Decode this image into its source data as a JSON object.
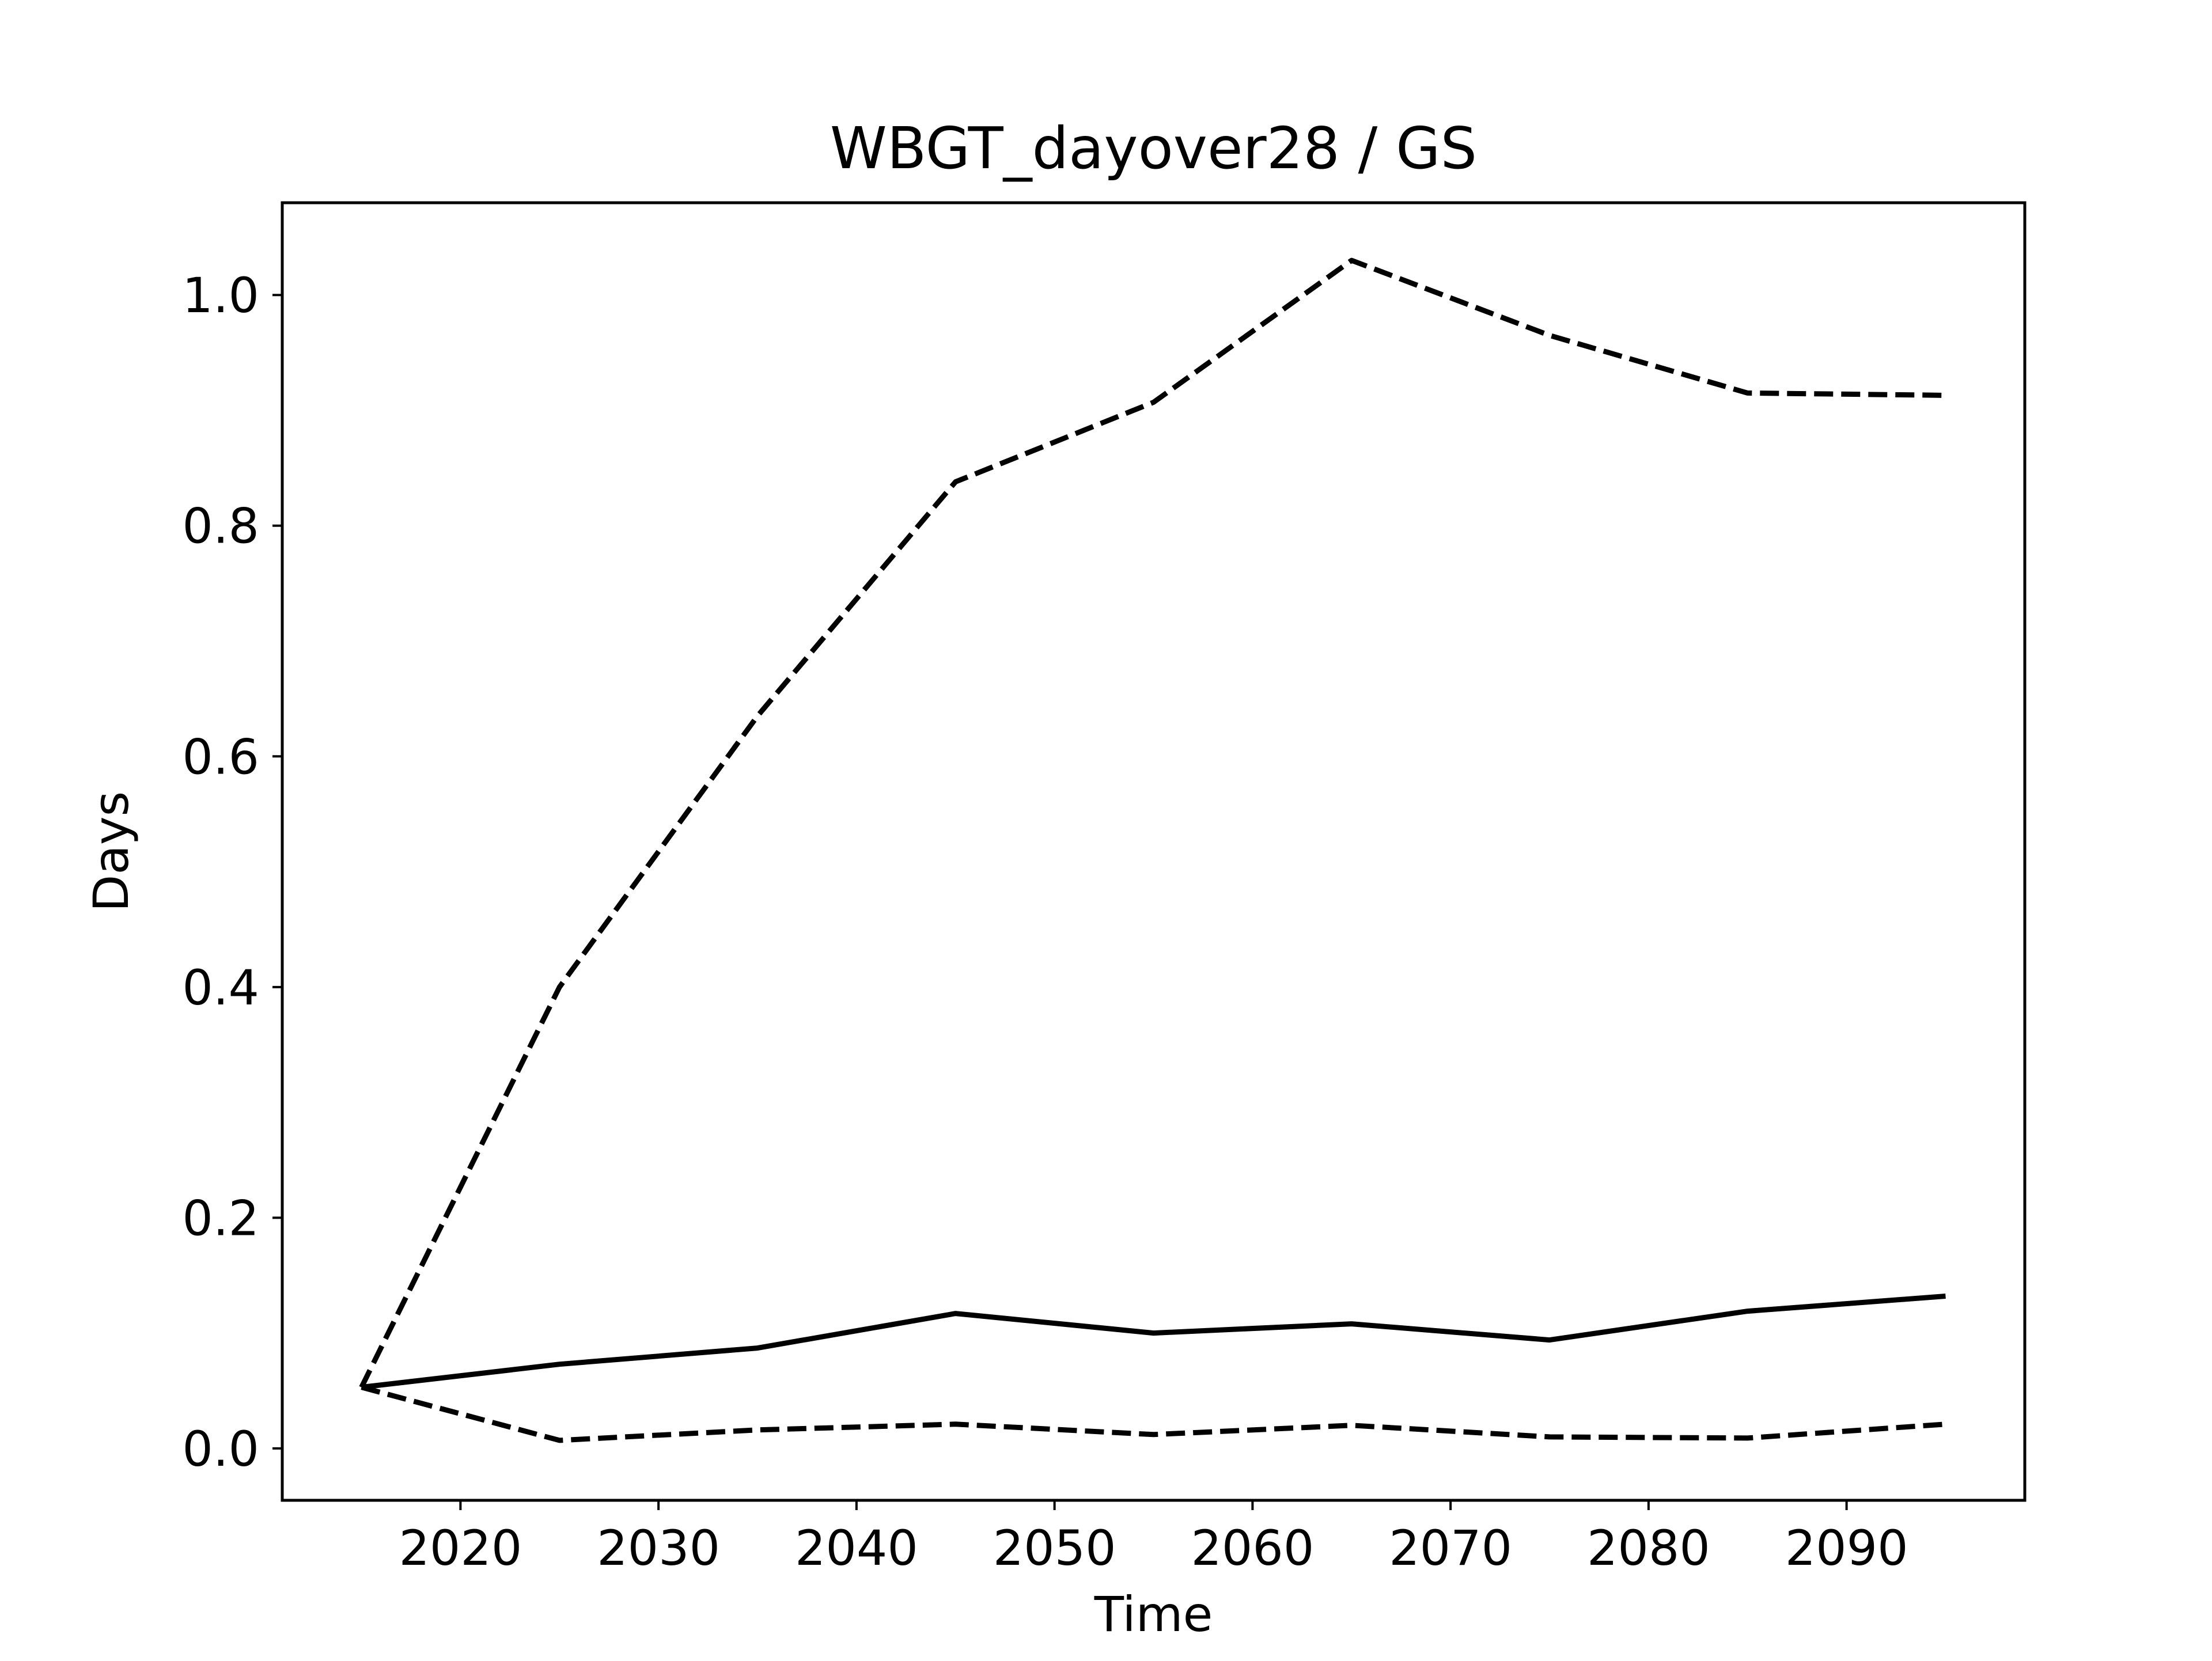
{
  "chart_data": {
    "type": "line",
    "title": "WBGT_dayover28 / GS",
    "xlabel": "Time",
    "ylabel": "Days",
    "xlim": [
      2011,
      2099
    ],
    "ylim": [
      -0.045,
      1.08
    ],
    "x_ticks": [
      2020,
      2030,
      2040,
      2050,
      2060,
      2070,
      2080,
      2090
    ],
    "x_tick_labels": [
      "2020",
      "2030",
      "2040",
      "2050",
      "2060",
      "2070",
      "2080",
      "2090"
    ],
    "y_ticks": [
      0.0,
      0.2,
      0.4,
      0.6,
      0.8,
      1.0
    ],
    "y_tick_labels": [
      "0.0",
      "0.2",
      "0.4",
      "0.6",
      "0.8",
      "1.0"
    ],
    "grid": false,
    "legend": false,
    "x": [
      2015,
      2025,
      2035,
      2045,
      2055,
      2065,
      2075,
      2085,
      2095
    ],
    "series": [
      {
        "style": "dashed",
        "color": "#000000",
        "values": [
          0.053,
          0.4,
          0.635,
          0.838,
          0.907,
          1.03,
          0.965,
          0.915,
          0.913
        ]
      },
      {
        "style": "solid",
        "color": "#000000",
        "values": [
          0.053,
          0.073,
          0.087,
          0.117,
          0.1,
          0.108,
          0.094,
          0.119,
          0.132
        ]
      },
      {
        "style": "dashed",
        "color": "#000000",
        "values": [
          0.053,
          0.007,
          0.016,
          0.021,
          0.012,
          0.02,
          0.01,
          0.009,
          0.021
        ]
      }
    ]
  }
}
